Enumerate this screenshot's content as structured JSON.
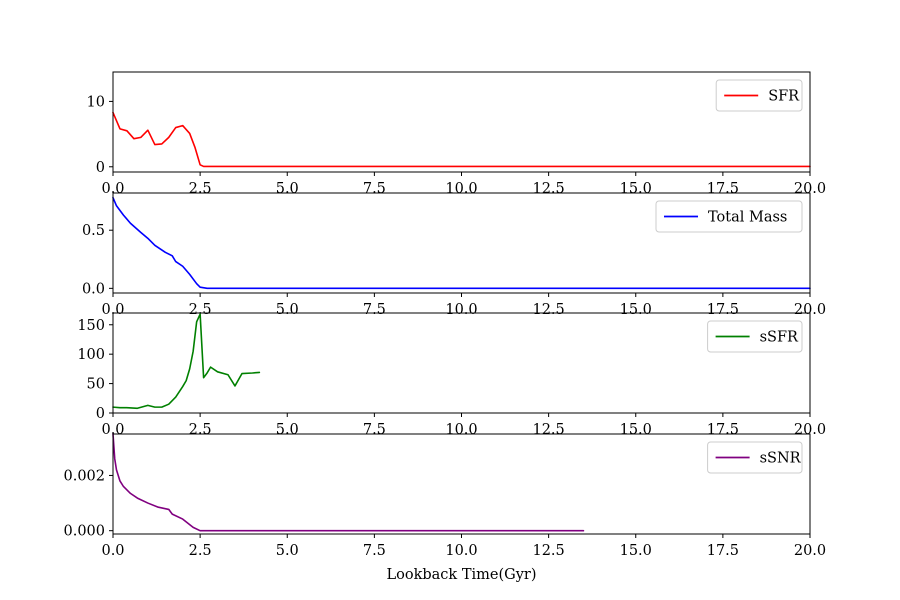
{
  "chart_data": [
    {
      "type": "line",
      "xlim": [
        0,
        20
      ],
      "ylim": [
        -0.8,
        14.5
      ],
      "xticks": [
        "0.0",
        "2.5",
        "5.0",
        "7.5",
        "10.0",
        "12.5",
        "15.0",
        "17.5",
        "20.0"
      ],
      "yticks": [
        "0",
        "10"
      ],
      "legend": "upper right",
      "grid": false,
      "series": [
        {
          "name": "SFR",
          "color": "#ff0000",
          "x": [
            0,
            0.2,
            0.4,
            0.6,
            0.8,
            1.0,
            1.2,
            1.4,
            1.6,
            1.8,
            2.0,
            2.2,
            2.35,
            2.5,
            2.6,
            3.0,
            5.0,
            10.0,
            15.0,
            20.0
          ],
          "y": [
            8.3,
            5.8,
            5.5,
            4.3,
            4.5,
            5.6,
            3.4,
            3.5,
            4.5,
            6.0,
            6.3,
            5.1,
            3.0,
            0.3,
            0.05,
            0.05,
            0.05,
            0.05,
            0.05,
            0.05
          ]
        }
      ]
    },
    {
      "type": "line",
      "xlim": [
        0,
        20
      ],
      "ylim": [
        -0.04,
        0.82
      ],
      "xticks": [
        "0.0",
        "2.5",
        "5.0",
        "7.5",
        "10.0",
        "12.5",
        "15.0",
        "17.5",
        "20.0"
      ],
      "yticks": [
        "0.0",
        "0.5"
      ],
      "legend": "upper right",
      "grid": false,
      "series": [
        {
          "name": "Total Mass",
          "color": "#0000ff",
          "x": [
            0,
            0.1,
            0.3,
            0.5,
            0.8,
            1.0,
            1.2,
            1.5,
            1.7,
            1.8,
            2.0,
            2.2,
            2.4,
            2.5,
            2.7,
            5.0,
            10.0,
            15.0,
            20.0
          ],
          "y": [
            0.78,
            0.71,
            0.63,
            0.56,
            0.48,
            0.43,
            0.37,
            0.31,
            0.28,
            0.23,
            0.19,
            0.12,
            0.04,
            0.01,
            0.0,
            0.0,
            0.0,
            0.0,
            0.0
          ]
        }
      ]
    },
    {
      "type": "line",
      "xlim": [
        0,
        20
      ],
      "ylim": [
        0,
        170
      ],
      "xticks": [
        "0.0",
        "2.5",
        "5.0",
        "7.5",
        "10.0",
        "12.5",
        "15.0",
        "17.5",
        "20.0"
      ],
      "yticks": [
        "0",
        "50",
        "100",
        "150"
      ],
      "legend": "upper right",
      "grid": false,
      "series": [
        {
          "name": "sSFR",
          "color": "#008000",
          "x": [
            0,
            0.2,
            0.4,
            0.7,
            1.0,
            1.2,
            1.4,
            1.6,
            1.8,
            2.0,
            2.1,
            2.2,
            2.3,
            2.4,
            2.5,
            2.6,
            2.7,
            2.8,
            3.0,
            3.3,
            3.5,
            3.7,
            4.0,
            4.2
          ],
          "y": [
            10,
            9,
            9,
            8,
            13,
            10,
            10,
            15,
            27,
            45,
            55,
            75,
            105,
            155,
            168,
            60,
            68,
            78,
            70,
            65,
            46,
            67,
            68,
            69
          ]
        }
      ]
    },
    {
      "type": "line",
      "xlim": [
        0,
        20
      ],
      "ylim": [
        -0.00012,
        0.0035
      ],
      "xticks": [
        "0.0",
        "2.5",
        "5.0",
        "7.5",
        "10.0",
        "12.5",
        "15.0",
        "17.5",
        "20.0"
      ],
      "yticks": [
        "0.000",
        "0.002"
      ],
      "xlabel": "Lookback Time(Gyr)",
      "legend": "upper right",
      "grid": false,
      "series": [
        {
          "name": "sSNR",
          "color": "#800080",
          "x": [
            0,
            0.05,
            0.1,
            0.2,
            0.3,
            0.5,
            0.7,
            1.0,
            1.3,
            1.6,
            1.7,
            2.0,
            2.3,
            2.5,
            3.0,
            5.0,
            10.0,
            13.5
          ],
          "y": [
            0.0035,
            0.0026,
            0.0022,
            0.0018,
            0.0016,
            0.00135,
            0.00118,
            0.001,
            0.00085,
            0.00077,
            0.0006,
            0.00042,
            0.00012,
            0.0,
            0.0,
            0.0,
            0.0,
            0.0
          ]
        }
      ]
    }
  ]
}
